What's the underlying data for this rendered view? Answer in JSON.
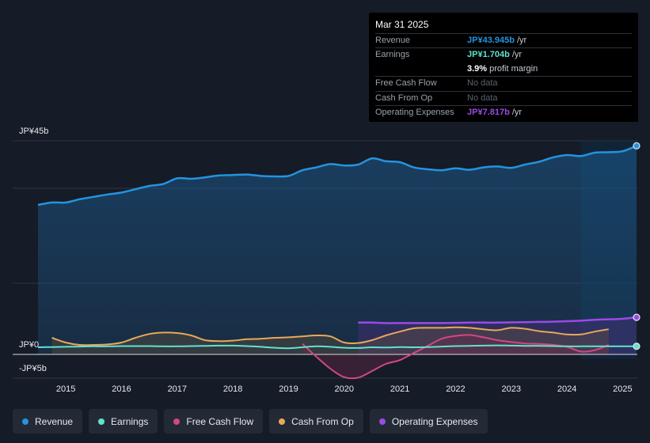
{
  "chart_data": {
    "type": "area",
    "x": [
      2014.5,
      2014.75,
      2015.0,
      2015.25,
      2015.5,
      2015.75,
      2016.0,
      2016.25,
      2016.5,
      2016.75,
      2017.0,
      2017.25,
      2017.5,
      2017.75,
      2018.0,
      2018.25,
      2018.5,
      2018.75,
      2019.0,
      2019.25,
      2019.5,
      2019.75,
      2020.0,
      2020.25,
      2020.5,
      2020.75,
      2021.0,
      2021.25,
      2021.5,
      2021.75,
      2022.0,
      2022.25,
      2022.5,
      2022.75,
      2023.0,
      2023.25,
      2023.5,
      2023.75,
      2024.0,
      2024.25,
      2024.5,
      2024.75,
      2025.0,
      2025.25
    ],
    "series": [
      {
        "name": "Revenue",
        "color": "#2394df",
        "values": [
          31.5,
          32.0,
          32.0,
          32.7,
          33.2,
          33.7,
          34.1,
          34.8,
          35.5,
          35.9,
          37.1,
          37.0,
          37.3,
          37.7,
          37.8,
          37.9,
          37.6,
          37.5,
          37.6,
          38.8,
          39.4,
          40.1,
          39.8,
          40.0,
          41.3,
          40.7,
          40.5,
          39.4,
          39.0,
          38.8,
          39.2,
          38.9,
          39.4,
          39.6,
          39.3,
          40.0,
          40.6,
          41.5,
          42.0,
          41.8,
          42.5,
          42.6,
          42.8,
          43.945
        ]
      },
      {
        "name": "Earnings",
        "color": "#5fe3ce",
        "values": [
          1.5,
          1.55,
          1.6,
          1.65,
          1.7,
          1.7,
          1.75,
          1.75,
          1.75,
          1.7,
          1.7,
          1.75,
          1.8,
          1.85,
          1.85,
          1.75,
          1.6,
          1.4,
          1.3,
          1.5,
          1.7,
          1.6,
          1.4,
          1.35,
          1.5,
          1.45,
          1.55,
          1.5,
          1.55,
          1.65,
          1.75,
          1.8,
          1.85,
          1.9,
          1.85,
          1.8,
          1.8,
          1.75,
          1.7,
          1.7,
          1.7,
          1.7,
          1.7,
          1.704
        ]
      },
      {
        "name": "Free Cash Flow",
        "color": "#d1487f",
        "x": [
          2019.25,
          2019.5,
          2019.75,
          2020.0,
          2020.25,
          2020.5,
          2020.75,
          2021.0,
          2021.25,
          2021.5,
          2021.75,
          2022.0,
          2022.25,
          2022.5,
          2022.75,
          2023.0,
          2023.25,
          2023.5,
          2023.75,
          2024.0,
          2024.25,
          2024.5,
          2024.75
        ],
        "values": [
          2.2,
          -0.5,
          -3.0,
          -4.8,
          -4.9,
          -3.5,
          -2.0,
          -1.2,
          0.3,
          1.8,
          3.3,
          3.9,
          4.1,
          3.6,
          3.0,
          2.6,
          2.3,
          2.2,
          2.0,
          1.6,
          0.6,
          0.9,
          2.0
        ]
      },
      {
        "name": "Cash From Op",
        "color": "#e8a85a",
        "x": [
          2014.75,
          2015.0,
          2015.25,
          2015.5,
          2015.75,
          2016.0,
          2016.25,
          2016.5,
          2016.75,
          2017.0,
          2017.25,
          2017.5,
          2017.75,
          2018.0,
          2018.25,
          2018.5,
          2018.75,
          2019.0,
          2019.25,
          2019.5,
          2019.75,
          2020.0,
          2020.25,
          2020.5,
          2020.75,
          2021.0,
          2021.25,
          2021.5,
          2021.75,
          2022.0,
          2022.25,
          2022.5,
          2022.75,
          2023.0,
          2023.25,
          2023.5,
          2023.75,
          2024.0,
          2024.25,
          2024.5,
          2024.75
        ],
        "values": [
          3.5,
          2.5,
          2.0,
          2.0,
          2.1,
          2.5,
          3.5,
          4.3,
          4.6,
          4.5,
          4.0,
          3.0,
          2.8,
          2.9,
          3.2,
          3.3,
          3.5,
          3.6,
          3.8,
          4.0,
          3.8,
          2.5,
          2.4,
          3.0,
          4.0,
          4.8,
          5.5,
          5.6,
          5.6,
          5.7,
          5.6,
          5.3,
          5.1,
          5.6,
          5.4,
          4.9,
          4.6,
          4.2,
          4.2,
          4.8,
          5.3
        ]
      },
      {
        "name": "Operating Expenses",
        "color": "#9b4ae6",
        "x": [
          2020.25,
          2020.5,
          2020.75,
          2021.0,
          2021.25,
          2021.5,
          2021.75,
          2022.0,
          2022.25,
          2022.5,
          2022.75,
          2023.0,
          2023.25,
          2023.5,
          2023.75,
          2024.0,
          2024.25,
          2024.5,
          2024.75,
          2025.0,
          2025.25
        ],
        "values": [
          6.7,
          6.7,
          6.6,
          6.6,
          6.6,
          6.6,
          6.6,
          6.65,
          6.7,
          6.7,
          6.7,
          6.75,
          6.8,
          6.85,
          6.9,
          7.0,
          7.1,
          7.3,
          7.4,
          7.5,
          7.817
        ]
      }
    ],
    "ylim": [
      -5,
      45
    ],
    "y_labels": [
      "JP¥45b",
      "JP¥0",
      "-JP¥5b"
    ],
    "x_ticks": [
      "2015",
      "2016",
      "2017",
      "2018",
      "2019",
      "2020",
      "2021",
      "2022",
      "2023",
      "2024",
      "2025"
    ],
    "title": "",
    "xlabel": "",
    "ylabel": ""
  },
  "tooltip": {
    "date": "Mar 31 2025",
    "rows": [
      {
        "label": "Revenue",
        "value": "JP¥43.945b",
        "unit": "/yr",
        "color": "#2394df"
      },
      {
        "label": "Earnings",
        "value": "JP¥1.704b",
        "unit": "/yr",
        "color": "#5fe3ce"
      },
      {
        "label": "",
        "value": "3.9%",
        "unit": "profit margin",
        "color": "#ffffff"
      },
      {
        "label": "Free Cash Flow",
        "value": "No data",
        "unit": "",
        "color": "#5c626d"
      },
      {
        "label": "Cash From Op",
        "value": "No data",
        "unit": "",
        "color": "#5c626d"
      },
      {
        "label": "Operating Expenses",
        "value": "JP¥7.817b",
        "unit": "/yr",
        "color": "#9b4ae6"
      }
    ]
  },
  "legend": [
    {
      "label": "Revenue",
      "color": "#2394df"
    },
    {
      "label": "Earnings",
      "color": "#5fe3ce"
    },
    {
      "label": "Free Cash Flow",
      "color": "#d1487f"
    },
    {
      "label": "Cash From Op",
      "color": "#e8a85a"
    },
    {
      "label": "Operating Expenses",
      "color": "#9b4ae6"
    }
  ]
}
